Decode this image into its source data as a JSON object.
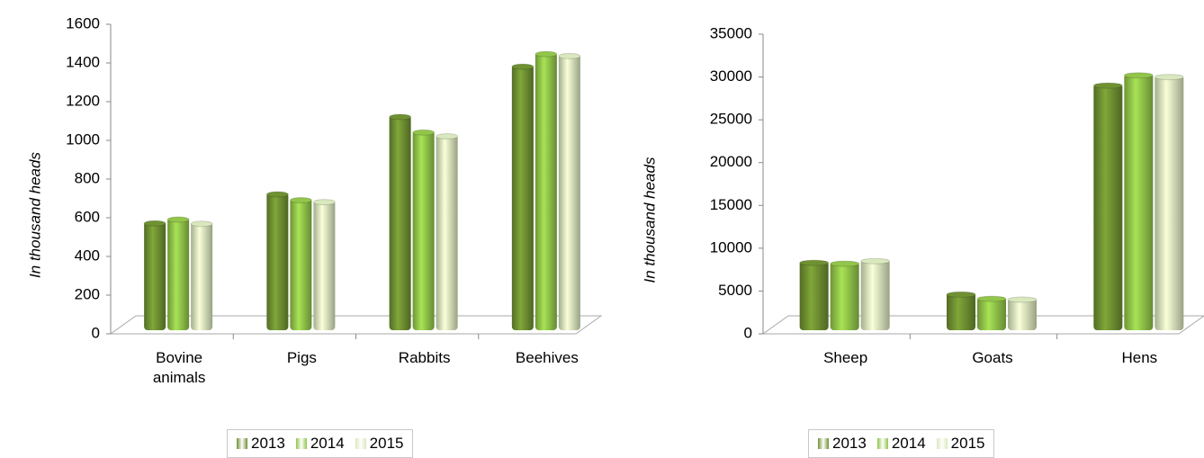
{
  "chart_data": [
    {
      "type": "bar",
      "y_label": "In thousand heads",
      "categories": [
        "Bovine animals",
        "Pigs",
        "Rabbits",
        "Beehives"
      ],
      "series": [
        {
          "name": "2013",
          "color": "#6f9132",
          "values": [
            580,
            730,
            1130,
            1390
          ]
        },
        {
          "name": "2014",
          "color": "#92c54a",
          "values": [
            600,
            700,
            1050,
            1455
          ]
        },
        {
          "name": "2015",
          "color": "#d9e8bd",
          "values": [
            578,
            690,
            1030,
            1445
          ]
        }
      ],
      "ylim": [
        0,
        1600
      ],
      "yticks": [
        0,
        200,
        400,
        600,
        800,
        1000,
        1200,
        1400,
        1600
      ]
    },
    {
      "type": "bar",
      "y_label": "In thousand heads",
      "categories": [
        "Sheep",
        "Goats",
        "Hens"
      ],
      "series": [
        {
          "name": "2013",
          "color": "#6f9132",
          "values": [
            8500,
            4800,
            29200
          ]
        },
        {
          "name": "2014",
          "color": "#92c54a",
          "values": [
            8400,
            4300,
            30400
          ]
        },
        {
          "name": "2015",
          "color": "#d9e8bd",
          "values": [
            8700,
            4200,
            30200
          ]
        }
      ],
      "ylim": [
        0,
        35000
      ],
      "yticks": [
        0,
        5000,
        10000,
        15000,
        20000,
        25000,
        30000,
        35000
      ]
    }
  ]
}
